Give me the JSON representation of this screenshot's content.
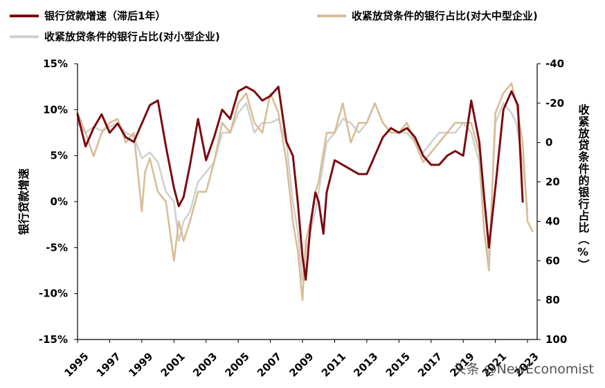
{
  "chart_data": {
    "type": "line",
    "title": "",
    "left_axis": {
      "title": "银行贷款增速",
      "ylim": [
        -15,
        15
      ],
      "ticks": [
        15,
        10,
        5,
        0,
        -5,
        -10,
        -15
      ],
      "tick_labels": [
        "15%",
        "10%",
        "5%",
        "0%",
        "-5%",
        "-10%",
        "-15%"
      ]
    },
    "right_axis": {
      "title": "收紧放贷条件的银行占比（%）",
      "ylim": [
        -40,
        100
      ],
      "inverted": true,
      "ticks": [
        -40,
        -20,
        0,
        20,
        40,
        60,
        80,
        100
      ],
      "tick_labels": [
        "-40",
        "-20",
        "0",
        "20",
        "40",
        "60",
        "80",
        "100"
      ]
    },
    "x_axis": {
      "xlim": [
        1995,
        2023.6
      ],
      "ticks": [
        1995,
        1997,
        1999,
        2001,
        2003,
        2005,
        2007,
        2009,
        2011,
        2013,
        2015,
        2017,
        2019,
        2021,
        2023
      ],
      "tick_labels": [
        "1995",
        "1997",
        "1999",
        "2001",
        "2003",
        "2005",
        "2007",
        "2009",
        "2011",
        "2013",
        "2015",
        "2017",
        "2019",
        "2021",
        "2023"
      ]
    },
    "series": [
      {
        "name": "银行贷款增速（滞后1年）",
        "axis": "left",
        "color": "#7a0a10",
        "x": [
          1995.0,
          1995.5,
          1996.0,
          1996.5,
          1997.0,
          1997.5,
          1998.0,
          1998.5,
          1999.0,
          1999.5,
          2000.0,
          2000.5,
          2001.0,
          2001.3,
          2001.6,
          2002.0,
          2002.5,
          2003.0,
          2003.5,
          2004.0,
          2004.5,
          2005.0,
          2005.5,
          2006.0,
          2006.5,
          2007.0,
          2007.5,
          2008.0,
          2008.4,
          2008.7,
          2009.0,
          2009.2,
          2009.5,
          2009.8,
          2010.0,
          2010.3,
          2010.5,
          2011.0,
          2011.5,
          2012.0,
          2012.5,
          2013.0,
          2013.5,
          2014.0,
          2014.5,
          2015.0,
          2015.5,
          2016.0,
          2016.5,
          2017.0,
          2017.5,
          2018.0,
          2018.5,
          2019.0,
          2019.5,
          2020.0,
          2020.3,
          2020.6,
          2021.0,
          2021.5,
          2022.0,
          2022.4,
          2022.7
        ],
        "values": [
          9.5,
          6.0,
          8.0,
          9.5,
          7.5,
          8.5,
          7.0,
          6.5,
          8.5,
          10.5,
          11.0,
          6.0,
          1.5,
          -0.5,
          0.5,
          4.0,
          9.0,
          4.5,
          7.0,
          10.0,
          9.0,
          12.0,
          12.5,
          12.0,
          11.0,
          11.5,
          12.5,
          6.5,
          5.0,
          0.0,
          -6.0,
          -8.5,
          -2.5,
          1.0,
          0.0,
          -3.5,
          1.0,
          4.5,
          4.0,
          3.5,
          3.0,
          3.0,
          5.0,
          7.0,
          8.0,
          7.5,
          8.0,
          7.0,
          5.0,
          4.0,
          4.0,
          5.0,
          5.5,
          5.0,
          11.0,
          6.5,
          0.5,
          -5.0,
          1.5,
          10.0,
          12.0,
          10.5,
          0.0
        ]
      },
      {
        "name": "收紧放贷条件的银行占比(对大中型企业)",
        "axis": "right",
        "color": "#d9bd96",
        "x": [
          1995.0,
          1995.5,
          1996.0,
          1996.5,
          1997.0,
          1997.5,
          1998.0,
          1998.5,
          1999.0,
          1999.2,
          1999.5,
          2000.0,
          2000.5,
          2001.0,
          2001.3,
          2001.6,
          2002.0,
          2002.5,
          2003.0,
          2003.5,
          2004.0,
          2004.5,
          2005.0,
          2005.5,
          2006.0,
          2006.5,
          2007.0,
          2007.5,
          2008.0,
          2008.4,
          2008.7,
          2009.0,
          2009.2,
          2009.5,
          2009.8,
          2010.0,
          2010.5,
          2011.0,
          2011.5,
          2012.0,
          2012.5,
          2013.0,
          2013.5,
          2014.0,
          2014.5,
          2015.0,
          2015.5,
          2016.0,
          2016.5,
          2017.0,
          2017.5,
          2018.0,
          2018.5,
          2019.0,
          2019.5,
          2020.0,
          2020.3,
          2020.6,
          2021.0,
          2021.5,
          2022.0,
          2022.3,
          2022.7,
          2023.0,
          2023.3
        ],
        "values": [
          -15,
          -5,
          7,
          -5,
          -10,
          -12,
          0,
          -5,
          35,
          15,
          8,
          25,
          30,
          60,
          40,
          50,
          40,
          25,
          25,
          10,
          -10,
          -5,
          -20,
          -25,
          -10,
          -5,
          -25,
          -15,
          10,
          40,
          55,
          80,
          50,
          40,
          25,
          20,
          -5,
          -5,
          -20,
          0,
          -10,
          -10,
          -20,
          -10,
          -5,
          -5,
          -10,
          0,
          10,
          5,
          0,
          -5,
          -10,
          -10,
          -10,
          5,
          45,
          65,
          -15,
          -25,
          -30,
          -20,
          0,
          40,
          45
        ]
      },
      {
        "name": "收紧放贷条件的银行占比(对小型企业)",
        "axis": "right",
        "color": "#d0d0d0",
        "x": [
          1995.0,
          1995.5,
          1996.0,
          1996.5,
          1997.0,
          1997.5,
          1998.0,
          1998.5,
          1999.0,
          1999.5,
          2000.0,
          2000.5,
          2001.0,
          2001.3,
          2001.6,
          2002.0,
          2002.5,
          2003.0,
          2003.5,
          2004.0,
          2004.5,
          2005.0,
          2005.5,
          2006.0,
          2006.5,
          2007.0,
          2007.5,
          2008.0,
          2008.4,
          2008.7,
          2009.0,
          2009.2,
          2009.5,
          2009.8,
          2010.0,
          2010.5,
          2011.0,
          2011.5,
          2012.0,
          2012.5,
          2013.0,
          2013.5,
          2014.0,
          2014.5,
          2015.0,
          2015.5,
          2016.0,
          2016.5,
          2017.0,
          2017.5,
          2018.0,
          2018.5,
          2019.0,
          2019.5,
          2020.0,
          2020.3,
          2020.6,
          2021.0,
          2021.5,
          2022.0,
          2022.3,
          2022.7,
          2023.0
        ],
        "values": [
          -10,
          -5,
          -8,
          -6,
          -8,
          -10,
          -5,
          -3,
          8,
          5,
          10,
          25,
          30,
          50,
          40,
          35,
          20,
          15,
          10,
          -5,
          -5,
          -15,
          -20,
          -5,
          -10,
          -10,
          -12,
          0,
          30,
          45,
          70,
          55,
          45,
          35,
          25,
          0,
          -5,
          -12,
          -10,
          -5,
          -10,
          -20,
          -10,
          -5,
          -5,
          -5,
          0,
          5,
          0,
          -5,
          -5,
          -5,
          -10,
          -5,
          10,
          45,
          60,
          -10,
          -20,
          -15,
          -10,
          10,
          35
        ]
      }
    ],
    "legend": [
      {
        "label": "银行贷款增速（滞后1年）",
        "color": "#7a0a10"
      },
      {
        "label": "收紧放贷条件的银行占比(对大中型企业)",
        "color": "#d9bd96"
      },
      {
        "label": "收紧放贷条件的银行占比(对小型企业)",
        "color": "#d0d0d0"
      }
    ]
  },
  "watermark": "头条 @NewEconomist"
}
